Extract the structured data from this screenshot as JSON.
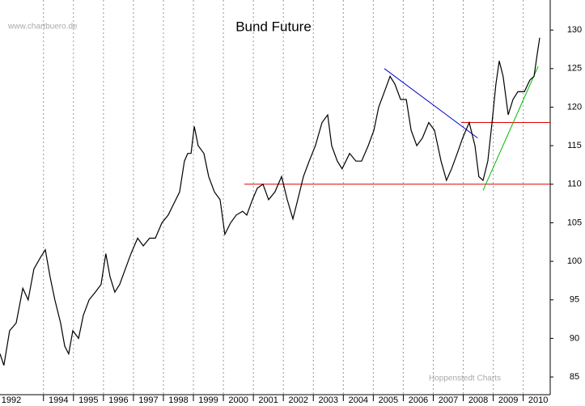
{
  "chart_data": {
    "type": "line",
    "title": "Bund Future",
    "annotations": [
      "www.chartbuero.de",
      "Hoppenstedt Charts"
    ],
    "x": [
      1992.55,
      1992.68,
      1992.87,
      1993.09,
      1993.31,
      1993.49,
      1993.68,
      1993.9,
      1994.06,
      1994.22,
      1994.38,
      1994.57,
      1994.71,
      1994.84,
      1994.98,
      1995.17,
      1995.33,
      1995.52,
      1995.73,
      1995.92,
      1996.08,
      1996.22,
      1996.38,
      1996.54,
      1996.73,
      1996.92,
      1997.14,
      1997.33,
      1997.54,
      1997.73,
      1997.95,
      1998.16,
      1998.35,
      1998.54,
      1998.7,
      1998.81,
      1998.92,
      1999.03,
      1999.16,
      1999.35,
      1999.51,
      1999.7,
      1999.89,
      2000.05,
      2000.24,
      2000.43,
      2000.64,
      2000.78,
      2000.97,
      2001.13,
      2001.32,
      2001.51,
      2001.72,
      2001.94,
      2002.13,
      2002.32,
      2002.48,
      2002.67,
      2002.86,
      2003.07,
      2003.29,
      2003.48,
      2003.61,
      2003.8,
      2003.96,
      2004.21,
      2004.42,
      2004.61,
      2004.83,
      2005.02,
      2005.18,
      2005.37,
      2005.56,
      2005.72,
      2005.91,
      2006.1,
      2006.26,
      2006.45,
      2006.64,
      2006.85,
      2007.04,
      2007.26,
      2007.44,
      2007.61,
      2007.8,
      2007.98,
      2008.2,
      2008.39,
      2008.52,
      2008.66,
      2008.82,
      2008.96,
      2009.09,
      2009.2,
      2009.33,
      2009.5,
      2009.66,
      2009.82,
      2010.04,
      2010.22,
      2010.36,
      2010.47,
      2010.55
    ],
    "series": [
      {
        "name": "Bund Future",
        "color": "#000000",
        "values": [
          88,
          86.5,
          91,
          92,
          96.5,
          95,
          99,
          100.5,
          101.5,
          98,
          95,
          92,
          89,
          88,
          91,
          90,
          93,
          95,
          96,
          97,
          101,
          98,
          96,
          97,
          99,
          101,
          103,
          102,
          103,
          103,
          105,
          106,
          107.5,
          109,
          113,
          114,
          114,
          117.5,
          115,
          114,
          111,
          109,
          108,
          103.5,
          105,
          106,
          106.5,
          106,
          108,
          109.5,
          110,
          108,
          109,
          111,
          108,
          105.5,
          108,
          111,
          113,
          115,
          118,
          119,
          115,
          113,
          112,
          114,
          113,
          113,
          115,
          117,
          120,
          122,
          124,
          123,
          121,
          121,
          117,
          115,
          116,
          118,
          117,
          113,
          110.5,
          112,
          114,
          116,
          118,
          115,
          111,
          110.5,
          113,
          118,
          123,
          126,
          124,
          119,
          121,
          122,
          122,
          123.5,
          124,
          127,
          129
        ]
      }
    ],
    "trendlines": [
      {
        "color": "#0000cc",
        "x": [
          2005.37,
          2008.48
        ],
        "y": [
          125,
          116
        ]
      },
      {
        "color": "#e00000",
        "x": [
          2000.7,
          2010.9
        ],
        "y": [
          110,
          110
        ]
      },
      {
        "color": "#e00000",
        "x": [
          2007.93,
          2010.9
        ],
        "y": [
          118,
          118
        ]
      },
      {
        "color": "#00bb00",
        "x": [
          2008.66,
          2010.5
        ],
        "y": [
          109.2,
          125.3
        ]
      }
    ],
    "xlim": [
      1992.55,
      2010.9
    ],
    "ylim": [
      82.7,
      133.9
    ],
    "xticks": [
      {
        "value": 1992,
        "label": "1992"
      },
      1994,
      1995,
      1996,
      1997,
      1998,
      1999,
      2000,
      2001,
      2002,
      2003,
      2004,
      2005,
      2006,
      2007,
      2008,
      2009,
      2010
    ],
    "yticks": [
      85,
      90,
      95,
      100,
      105,
      110,
      115,
      120,
      125,
      130
    ],
    "grid": true
  }
}
